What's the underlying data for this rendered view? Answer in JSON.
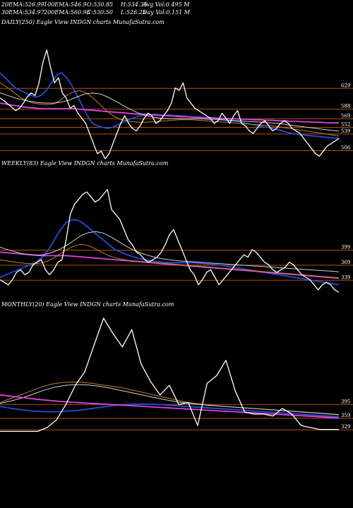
{
  "header": {
    "row1": [
      {
        "label": "20EMA:",
        "value": "526.99"
      },
      {
        "label": "100EMA:",
        "value": "546.9"
      },
      {
        "label": "O:",
        "value": "530.85"
      },
      {
        "label": "H:",
        "value": "534.35"
      },
      {
        "label": "Avg Vol:",
        "value": "0.495 M"
      }
    ],
    "row2": [
      {
        "label": "30EMA:",
        "value": "534.97"
      },
      {
        "label": "200EMA:",
        "value": "560.95"
      },
      {
        "label": "C:",
        "value": "530.50"
      },
      {
        "label": "L:",
        "value": "526.25"
      },
      {
        "label": "Day Vol:",
        "value": "0.151 M"
      }
    ]
  },
  "colors": {
    "background": "#000000",
    "price": "#ffffff",
    "ema_fast": "#1f4fd8",
    "ema_slow": "#e040e0",
    "ema_mid": "#c08030",
    "ema_other": "#d0d0d0",
    "level_line": "#b05010"
  },
  "chart_data": [
    {
      "type": "line",
      "title": "DAILY(250) Eagle  View  INDGN  charts MunafaSutra.com",
      "levels": [
        "629",
        "588",
        "569",
        "552",
        "539",
        "506"
      ],
      "level_values": [
        629,
        588,
        569,
        552,
        539,
        506
      ],
      "ylim": [
        490,
        720
      ],
      "series": [
        {
          "role": "price",
          "color": "#ffffff",
          "values": [
            610,
            605,
            598,
            592,
            585,
            590,
            600,
            612,
            620,
            615,
            640,
            680,
            705,
            670,
            640,
            650,
            620,
            610,
            590,
            595,
            580,
            570,
            560,
            540,
            520,
            500,
            505,
            490,
            500,
            520,
            540,
            560,
            575,
            560,
            550,
            545,
            555,
            570,
            580,
            575,
            560,
            565,
            575,
            585,
            600,
            630,
            625,
            640,
            610,
            600,
            590,
            585,
            580,
            575,
            570,
            560,
            565,
            580,
            570,
            560,
            575,
            585,
            560,
            555,
            545,
            540,
            550,
            560,
            565,
            555,
            545,
            550,
            560,
            565,
            560,
            550,
            545,
            540,
            530,
            520,
            510,
            500,
            495,
            505,
            515,
            520,
            525,
            530
          ]
        },
        {
          "role": "ema",
          "color": "#1f4fd8",
          "values": [
            660,
            650,
            640,
            630,
            625,
            620,
            615,
            612,
            615,
            625,
            640,
            655,
            660,
            650,
            635,
            615,
            595,
            575,
            560,
            555,
            552,
            550,
            553,
            557,
            562,
            567,
            571,
            574,
            576,
            577,
            578,
            577,
            576,
            576,
            575,
            575,
            574,
            573,
            572,
            571,
            570,
            569,
            568,
            567,
            566,
            565,
            564,
            562,
            560,
            558,
            556,
            554,
            552,
            550,
            548,
            545,
            542,
            540,
            538,
            537,
            536,
            535,
            534,
            533,
            532,
            531,
            531
          ]
        },
        {
          "role": "ema",
          "color": "#e040e0",
          "values": [
            600,
            598,
            596,
            594,
            592,
            591,
            590,
            589,
            589,
            589,
            589,
            589,
            589,
            588,
            587,
            586,
            585,
            584,
            583,
            582,
            581,
            580,
            579,
            578,
            578,
            577,
            576,
            575,
            575,
            574,
            573,
            573,
            572,
            572,
            571,
            571,
            570,
            570,
            569,
            569,
            568,
            568,
            567,
            567,
            566,
            566,
            565,
            565,
            564,
            564,
            563,
            563,
            562,
            562,
            561,
            561,
            561
          ]
        },
        {
          "role": "ema",
          "color": "#c08030",
          "values": [
            640,
            632,
            622,
            612,
            605,
            600,
            598,
            597,
            598,
            605,
            615,
            622,
            625,
            620,
            610,
            598,
            585,
            575,
            568,
            565,
            563,
            562,
            562,
            563,
            564,
            565,
            566,
            567,
            567,
            567,
            566,
            565,
            564,
            563,
            562,
            561,
            560,
            559,
            558,
            557,
            556,
            555,
            553,
            551,
            549,
            547,
            545,
            543,
            541,
            539,
            537,
            535
          ]
        },
        {
          "role": "ema",
          "color": "#d0d0d0",
          "values": [
            620,
            615,
            610,
            606,
            603,
            601,
            600,
            600,
            602,
            606,
            612,
            618,
            620,
            618,
            612,
            604,
            595,
            587,
            580,
            575,
            572,
            570,
            569,
            569,
            569,
            569,
            569,
            568,
            568,
            567,
            566,
            565,
            564,
            563,
            562,
            561,
            560,
            558,
            556,
            554,
            552,
            550,
            548,
            546,
            545
          ]
        }
      ]
    },
    {
      "type": "line",
      "title": "WEEKLY(83) Eagle  View  INDGN  charts MunafaSutra.com",
      "levels": [
        "399",
        "369",
        "339"
      ],
      "level_values": [
        399,
        369,
        339
      ],
      "ylim": [
        300,
        560
      ],
      "series": [
        {
          "role": "price",
          "color": "#ffffff",
          "values": [
            340,
            335,
            330,
            340,
            355,
            360,
            350,
            355,
            370,
            375,
            380,
            360,
            350,
            360,
            375,
            380,
            420,
            470,
            490,
            500,
            510,
            515,
            505,
            495,
            500,
            510,
            520,
            480,
            470,
            460,
            440,
            420,
            410,
            395,
            390,
            380,
            375,
            380,
            385,
            395,
            410,
            430,
            440,
            420,
            400,
            380,
            360,
            350,
            330,
            340,
            355,
            360,
            345,
            330,
            340,
            350,
            360,
            370,
            380,
            390,
            385,
            400,
            395,
            385,
            375,
            370,
            360,
            355,
            360,
            365,
            375,
            370,
            360,
            350,
            345,
            340,
            330,
            320,
            330,
            335,
            330,
            320,
            315
          ]
        },
        {
          "role": "ema",
          "color": "#1f4fd8",
          "values": [
            345,
            350,
            355,
            360,
            365,
            370,
            375,
            385,
            400,
            420,
            440,
            455,
            460,
            458,
            450,
            440,
            430,
            420,
            410,
            400,
            395,
            390,
            386,
            382,
            380,
            378,
            376,
            375,
            374,
            374,
            374,
            374,
            374,
            373,
            372,
            371,
            370,
            368,
            366,
            364,
            362,
            360,
            358,
            356,
            354,
            352,
            350,
            348,
            346,
            344,
            342,
            340,
            338,
            336,
            334,
            332,
            330
          ]
        },
        {
          "role": "ema",
          "color": "#e040e0",
          "values": [
            395,
            394,
            393,
            392,
            391,
            390,
            389,
            388,
            388,
            388,
            388,
            388,
            387,
            386,
            385,
            384,
            383,
            382,
            381,
            380,
            379,
            378,
            377,
            376,
            375,
            374,
            373,
            372,
            371,
            370,
            369,
            368,
            367,
            366,
            365,
            364,
            363,
            362,
            361,
            360,
            359,
            358,
            357,
            356,
            355,
            354,
            353,
            352,
            351,
            350,
            349,
            348,
            347,
            346,
            345,
            344,
            343
          ]
        },
        {
          "role": "ema",
          "color": "#c08030",
          "values": [
            380,
            378,
            376,
            374,
            373,
            372,
            372,
            374,
            378,
            384,
            392,
            400,
            406,
            410,
            410,
            406,
            400,
            394,
            388,
            384,
            381,
            379,
            378,
            377,
            376,
            375,
            374,
            373,
            372,
            371,
            370,
            369,
            368,
            367,
            366,
            365,
            364,
            363,
            362,
            361,
            360,
            359,
            358,
            357,
            356,
            355,
            354,
            353,
            352,
            351,
            350,
            349,
            348,
            347,
            346,
            345,
            344
          ]
        },
        {
          "role": "ema",
          "color": "#d0d0d0",
          "values": [
            405,
            400,
            396,
            392,
            390,
            389,
            390,
            394,
            400,
            408,
            418,
            428,
            434,
            436,
            433,
            426,
            417,
            408,
            400,
            394,
            389,
            385,
            382,
            380,
            378,
            377,
            376,
            375,
            374,
            373,
            372,
            371,
            370,
            369,
            368,
            367,
            366,
            365,
            364,
            363,
            362,
            361,
            360,
            359,
            358,
            357,
            356
          ]
        }
      ]
    },
    {
      "type": "line",
      "title": "MONTHLY(20) Eagle  View  INDGN  charts MunafaSutra.com",
      "levels": [
        "395",
        "359",
        "329"
      ],
      "level_values": [
        395,
        359,
        329
      ],
      "ylim": [
        300,
        640
      ],
      "series": [
        {
          "role": "price",
          "color": "#ffffff",
          "values": [
            325,
            325,
            325,
            325,
            325,
            335,
            355,
            395,
            445,
            480,
            550,
            620,
            580,
            545,
            590,
            500,
            455,
            420,
            445,
            395,
            400,
            340,
            450,
            470,
            510,
            430,
            375,
            370,
            370,
            365,
            385,
            370,
            340,
            335,
            330,
            330,
            330
          ]
        },
        {
          "role": "ema",
          "color": "#1f4fd8",
          "values": [
            390,
            385,
            381,
            378,
            376,
            376,
            378,
            380,
            384,
            388,
            392,
            395,
            396,
            396,
            395,
            393,
            391,
            389,
            387,
            385,
            383,
            381,
            379,
            377,
            375,
            373,
            371,
            369,
            367,
            365,
            363
          ]
        },
        {
          "role": "ema",
          "color": "#c08030",
          "values": [
            400,
            410,
            420,
            430,
            440,
            448,
            452,
            454,
            453,
            450,
            446,
            442,
            438,
            432,
            426,
            420,
            414,
            408,
            402,
            398,
            395,
            392,
            390,
            388,
            386,
            384,
            382,
            380,
            378,
            376,
            374,
            372,
            370,
            368
          ]
        },
        {
          "role": "ema",
          "color": "#d0d0d0",
          "values": [
            398,
            404,
            412,
            422,
            432,
            440,
            445,
            447,
            446,
            443,
            438,
            432,
            426,
            420,
            414,
            408,
            403,
            399,
            396,
            393,
            391,
            389,
            387,
            385,
            383,
            381,
            379,
            377,
            375,
            373,
            371,
            369
          ]
        },
        {
          "role": "ema",
          "color": "#e040e0",
          "values": [
            420,
            416,
            412,
            408,
            405,
            402,
            400,
            398,
            396,
            394,
            392,
            390,
            388,
            386,
            384,
            382,
            380,
            378,
            376,
            374,
            372,
            370,
            368,
            366,
            364,
            362,
            360
          ]
        }
      ]
    }
  ]
}
